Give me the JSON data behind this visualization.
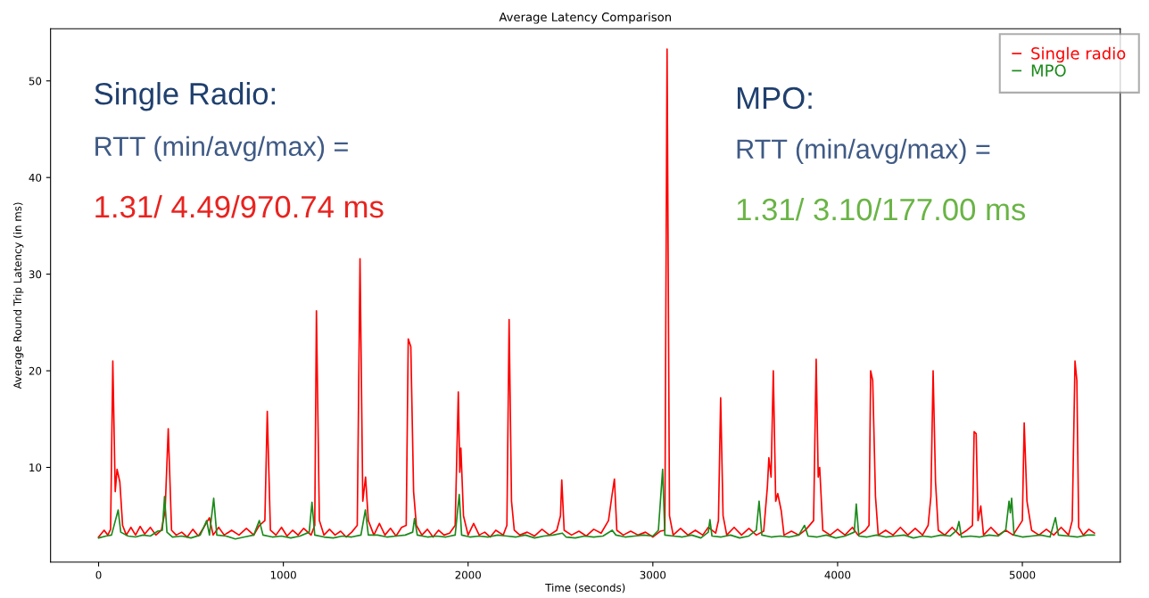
{
  "chart_data": {
    "type": "line",
    "title": "Average Latency Comparison",
    "xlabel": "Time (seconds)",
    "ylabel": "Average Round Trip Latency (in ms)",
    "xlim": [
      -260,
      5530
    ],
    "xticks": [
      0,
      1000,
      2000,
      3000,
      4000,
      5000
    ],
    "ylim": [
      0.2,
      55.4
    ],
    "yticks": [
      10,
      20,
      30,
      40,
      50
    ],
    "grid": false,
    "legend": "top right",
    "marker": "none",
    "line_style": "solid",
    "annotations": [
      "Single Radio:",
      "RTT (min/avg/max) =",
      "1.31/ 4.49/970.74 ms",
      "MPO:",
      "RTT (min/avg/max) =",
      "1.31/ 3.10/177.00 ms"
    ],
    "series": [
      {
        "name": "Single radio",
        "color": "#ff0000",
        "x": [
          0,
          30,
          50,
          65,
          77,
          90,
          100,
          115,
          130,
          150,
          175,
          200,
          225,
          250,
          280,
          310,
          340,
          360,
          377,
          395,
          420,
          450,
          480,
          510,
          540,
          570,
          600,
          620,
          650,
          680,
          720,
          760,
          800,
          840,
          870,
          900,
          913,
          930,
          960,
          990,
          1020,
          1050,
          1080,
          1110,
          1150,
          1170,
          1179,
          1195,
          1220,
          1250,
          1280,
          1310,
          1340,
          1370,
          1400,
          1415,
          1430,
          1445,
          1460,
          1490,
          1520,
          1550,
          1580,
          1610,
          1640,
          1665,
          1676,
          1690,
          1705,
          1720,
          1750,
          1780,
          1810,
          1840,
          1870,
          1900,
          1930,
          1947,
          1955,
          1961,
          1975,
          2000,
          2030,
          2060,
          2090,
          2120,
          2150,
          2190,
          2210,
          2222,
          2235,
          2250,
          2280,
          2320,
          2360,
          2400,
          2440,
          2480,
          2500,
          2507,
          2520,
          2560,
          2600,
          2640,
          2680,
          2720,
          2760,
          2778,
          2792,
          2805,
          2840,
          2880,
          2920,
          2960,
          3000,
          3040,
          3065,
          3077,
          3090,
          3110,
          3150,
          3190,
          3230,
          3270,
          3300,
          3340,
          3355,
          3367,
          3380,
          3400,
          3440,
          3480,
          3520,
          3560,
          3600,
          3620,
          3628,
          3640,
          3652,
          3665,
          3676,
          3695,
          3710,
          3750,
          3790,
          3830,
          3870,
          3884,
          3895,
          3903,
          3920,
          3960,
          4000,
          4040,
          4080,
          4110,
          4150,
          4170,
          4179,
          4190,
          4205,
          4220,
          4260,
          4300,
          4340,
          4380,
          4420,
          4460,
          4490,
          4505,
          4517,
          4530,
          4545,
          4580,
          4620,
          4660,
          4700,
          4730,
          4739,
          4750,
          4760,
          4775,
          4790,
          4830,
          4870,
          4910,
          4950,
          5000,
          5010,
          5025,
          5050,
          5090,
          5130,
          5170,
          5210,
          5250,
          5270,
          5285,
          5295,
          5305,
          5330,
          5360,
          5390
        ],
        "values": [
          2.8,
          3.5,
          3.0,
          3.6,
          21.0,
          7.5,
          9.8,
          8.5,
          4.0,
          3.0,
          3.8,
          3.0,
          3.9,
          3.1,
          3.8,
          3.0,
          3.5,
          5.5,
          14.0,
          3.5,
          3.0,
          3.3,
          2.8,
          3.6,
          2.9,
          3.8,
          4.8,
          3.0,
          3.8,
          3.0,
          3.5,
          3.0,
          3.7,
          3.0,
          4.0,
          4.5,
          15.8,
          3.5,
          3.0,
          3.8,
          2.9,
          3.5,
          3.0,
          3.7,
          3.0,
          4.0,
          26.2,
          4.5,
          3.0,
          3.6,
          3.0,
          3.4,
          2.8,
          3.3,
          4.0,
          31.6,
          6.5,
          9.0,
          4.5,
          3.0,
          4.2,
          3.0,
          3.7,
          2.9,
          3.8,
          4.0,
          23.3,
          22.5,
          7.5,
          4.0,
          3.0,
          3.6,
          2.8,
          3.5,
          3.0,
          3.2,
          4.0,
          17.8,
          9.5,
          12.0,
          5.0,
          3.0,
          4.2,
          3.0,
          3.3,
          2.8,
          3.5,
          3.0,
          4.0,
          25.3,
          6.5,
          3.5,
          3.0,
          3.3,
          2.9,
          3.6,
          3.0,
          3.5,
          5.0,
          8.7,
          3.5,
          3.0,
          3.4,
          2.9,
          3.6,
          3.2,
          4.5,
          7.0,
          8.8,
          3.5,
          3.0,
          3.4,
          3.0,
          3.3,
          2.8,
          3.4,
          3.5,
          53.3,
          5.0,
          3.0,
          3.7,
          3.0,
          3.5,
          3.0,
          3.8,
          3.2,
          4.5,
          17.2,
          5.0,
          3.0,
          3.8,
          3.0,
          3.7,
          3.0,
          3.4,
          8.0,
          11.0,
          9.0,
          20.0,
          6.5,
          7.3,
          5.5,
          3.0,
          3.4,
          3.0,
          3.6,
          4.5,
          21.2,
          9.0,
          10.0,
          3.5,
          3.0,
          3.6,
          3.0,
          3.8,
          3.0,
          3.5,
          4.0,
          20.0,
          19.0,
          7.0,
          3.0,
          3.5,
          3.0,
          3.8,
          3.0,
          3.7,
          3.0,
          4.0,
          7.0,
          20.0,
          8.5,
          3.5,
          3.0,
          3.8,
          3.0,
          3.5,
          4.0,
          13.7,
          13.5,
          4.5,
          6.0,
          3.0,
          3.8,
          3.0,
          3.5,
          3.0,
          4.5,
          14.6,
          6.5,
          3.5,
          3.0,
          3.6,
          3.0,
          3.8,
          3.0,
          4.5,
          21.0,
          19.0,
          3.8,
          3.0,
          3.6,
          3.2
        ]
      },
      {
        "name": "MPO",
        "color": "#1a8a1a",
        "x": [
          0,
          40,
          70,
          95,
          106,
          120,
          160,
          200,
          240,
          280,
          320,
          345,
          357,
          370,
          400,
          450,
          500,
          550,
          585,
          600,
          623,
          640,
          690,
          740,
          790,
          840,
          870,
          890,
          940,
          990,
          1040,
          1090,
          1140,
          1155,
          1170,
          1220,
          1270,
          1320,
          1370,
          1420,
          1444,
          1460,
          1510,
          1560,
          1610,
          1660,
          1700,
          1710,
          1725,
          1780,
          1830,
          1880,
          1930,
          1952,
          1965,
          2010,
          2060,
          2110,
          2160,
          2210,
          2260,
          2310,
          2360,
          2410,
          2460,
          2510,
          2530,
          2580,
          2630,
          2680,
          2730,
          2780,
          2800,
          2850,
          2900,
          2950,
          3000,
          3030,
          3053,
          3065,
          3110,
          3160,
          3210,
          3260,
          3300,
          3309,
          3320,
          3370,
          3420,
          3470,
          3520,
          3560,
          3575,
          3590,
          3640,
          3690,
          3740,
          3790,
          3821,
          3840,
          3890,
          3940,
          3990,
          4040,
          4090,
          4101,
          4115,
          4160,
          4210,
          4260,
          4310,
          4360,
          4410,
          4460,
          4510,
          4560,
          4610,
          4645,
          4657,
          4670,
          4720,
          4770,
          4820,
          4870,
          4910,
          4928,
          4935,
          4942,
          4955,
          5000,
          5050,
          5100,
          5150,
          5179,
          5195,
          5250,
          5300,
          5350,
          5390
        ],
        "values": [
          2.7,
          2.9,
          3.0,
          4.8,
          5.6,
          3.3,
          2.9,
          2.8,
          3.0,
          2.9,
          3.4,
          3.5,
          7.0,
          3.3,
          2.8,
          2.9,
          2.7,
          3.0,
          4.5,
          3.0,
          6.8,
          3.0,
          2.9,
          2.6,
          2.8,
          3.0,
          4.5,
          3.0,
          2.8,
          2.9,
          2.7,
          2.9,
          3.3,
          6.4,
          3.0,
          2.8,
          2.7,
          2.9,
          2.8,
          3.0,
          5.6,
          3.0,
          3.0,
          2.8,
          2.9,
          3.0,
          3.3,
          4.7,
          3.0,
          2.8,
          2.9,
          2.8,
          3.0,
          7.2,
          3.0,
          2.8,
          2.9,
          2.8,
          3.0,
          2.9,
          2.8,
          3.0,
          2.7,
          2.9,
          3.0,
          3.2,
          2.8,
          2.7,
          2.9,
          2.8,
          2.9,
          3.5,
          3.0,
          2.8,
          2.9,
          3.0,
          2.9,
          3.5,
          9.8,
          3.0,
          2.9,
          2.8,
          3.0,
          2.7,
          3.3,
          4.6,
          2.9,
          2.8,
          3.0,
          2.7,
          2.9,
          3.5,
          6.5,
          3.0,
          2.8,
          2.9,
          2.8,
          3.0,
          4.0,
          2.9,
          2.8,
          3.0,
          2.7,
          2.9,
          3.3,
          6.2,
          2.9,
          2.8,
          3.0,
          2.8,
          2.9,
          3.0,
          2.7,
          2.9,
          2.8,
          3.0,
          2.9,
          3.5,
          4.4,
          2.8,
          2.9,
          2.8,
          3.0,
          2.9,
          3.5,
          6.5,
          5.3,
          6.8,
          3.0,
          2.8,
          2.9,
          3.0,
          2.8,
          4.8,
          3.0,
          2.9,
          2.8,
          3.0,
          3.0
        ]
      }
    ]
  }
}
